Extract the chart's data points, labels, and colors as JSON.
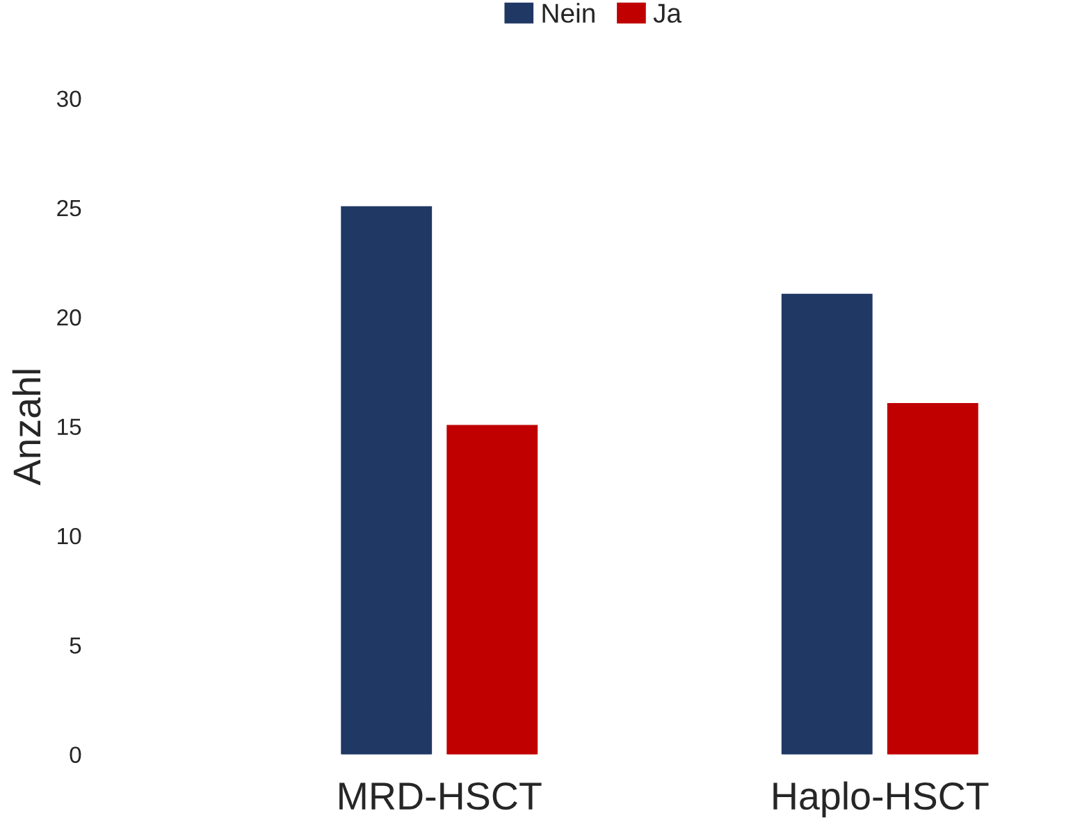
{
  "chart_data": {
    "type": "bar",
    "ylabel": "Anzahl",
    "categories": [
      "MRD-HSCT",
      "Haplo-HSCT"
    ],
    "series": [
      {
        "name": "Nein",
        "color": "#203864",
        "values": [
          25,
          21
        ]
      },
      {
        "name": "Ja",
        "color": "#c00000",
        "values": [
          15,
          16
        ]
      }
    ],
    "ylim": [
      0,
      30
    ],
    "yticks": [
      0,
      5,
      10,
      15,
      20,
      25,
      30
    ],
    "grid": false,
    "legend": "top"
  }
}
